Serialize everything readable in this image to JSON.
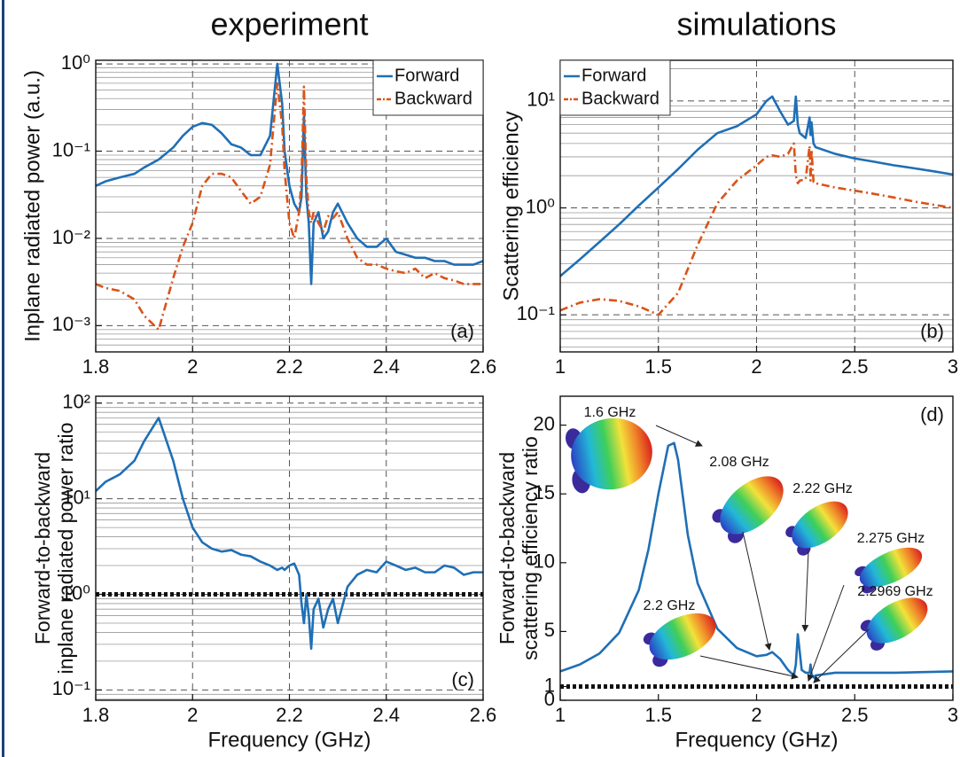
{
  "chart_data": [
    {
      "type": "line",
      "title": "experiment",
      "ylabel": "Inplane radiated power (a.u.)",
      "panel_label": "(a)",
      "xlim": [
        1.8,
        2.6
      ],
      "xticks": [
        1.8,
        2,
        2.2,
        2.4,
        2.6
      ],
      "ylog": true,
      "ylim": [
        0.0005,
        1.1
      ],
      "yticks": [
        {
          "value": 0.001,
          "label": "10⁻³"
        },
        {
          "value": 0.01,
          "label": "10⁻²"
        },
        {
          "value": 0.1,
          "label": "10⁻¹"
        },
        {
          "value": 1,
          "label": "10⁰"
        }
      ],
      "grid": true,
      "minor_grid": true,
      "legend": "upper right",
      "x": [
        1.8,
        1.82,
        1.85,
        1.88,
        1.9,
        1.93,
        1.96,
        1.98,
        2,
        2.02,
        2.04,
        2.06,
        2.08,
        2.1,
        2.12,
        2.14,
        2.16,
        2.175,
        2.185,
        2.19,
        2.2,
        2.21,
        2.22,
        2.225,
        2.23,
        2.235,
        2.24,
        2.245,
        2.25,
        2.26,
        2.27,
        2.28,
        2.29,
        2.3,
        2.32,
        2.34,
        2.36,
        2.38,
        2.4,
        2.42,
        2.44,
        2.46,
        2.48,
        2.5,
        2.52,
        2.54,
        2.56,
        2.58,
        2.6
      ],
      "series": [
        {
          "name": "Forward",
          "color": "#1f6fb5",
          "style": "solid",
          "values": [
            0.04,
            0.045,
            0.05,
            0.055,
            0.065,
            0.08,
            0.11,
            0.15,
            0.19,
            0.21,
            0.2,
            0.16,
            0.12,
            0.11,
            0.09,
            0.09,
            0.15,
            1.0,
            0.35,
            0.1,
            0.04,
            0.025,
            0.02,
            0.03,
            0.25,
            0.03,
            0.015,
            0.003,
            0.015,
            0.02,
            0.01,
            0.012,
            0.02,
            0.025,
            0.015,
            0.01,
            0.008,
            0.008,
            0.01,
            0.007,
            0.0065,
            0.006,
            0.006,
            0.0055,
            0.0055,
            0.005,
            0.005,
            0.005,
            0.0055
          ]
        },
        {
          "name": "Backward",
          "color": "#d95319",
          "style": "dashdot",
          "values": [
            0.003,
            0.0027,
            0.0025,
            0.002,
            0.0013,
            0.0009,
            0.0035,
            0.008,
            0.015,
            0.04,
            0.055,
            0.055,
            0.05,
            0.035,
            0.025,
            0.03,
            0.07,
            0.6,
            0.2,
            0.06,
            0.015,
            0.01,
            0.02,
            0.05,
            0.55,
            0.05,
            0.02,
            0.015,
            0.02,
            0.015,
            0.012,
            0.018,
            0.017,
            0.02,
            0.01,
            0.006,
            0.005,
            0.005,
            0.0045,
            0.0042,
            0.004,
            0.0045,
            0.0035,
            0.004,
            0.0035,
            0.0033,
            0.003,
            0.003,
            0.003
          ]
        }
      ]
    },
    {
      "type": "line",
      "title": "simulations",
      "ylabel": "Scattering efficiency",
      "panel_label": "(b)",
      "xlim": [
        1,
        3
      ],
      "xticks": [
        1,
        1.5,
        2,
        2.5,
        3
      ],
      "ylog": true,
      "ylim": [
        0.045,
        24
      ],
      "yticks": [
        {
          "value": 0.1,
          "label": "10⁻¹"
        },
        {
          "value": 1,
          "label": "10⁰"
        },
        {
          "value": 10,
          "label": "10¹"
        }
      ],
      "grid": true,
      "minor_grid": true,
      "legend": "upper left",
      "x": [
        1,
        1.1,
        1.2,
        1.3,
        1.4,
        1.5,
        1.6,
        1.7,
        1.8,
        1.9,
        2,
        2.05,
        2.08,
        2.12,
        2.16,
        2.19,
        2.2,
        2.21,
        2.22,
        2.25,
        2.27,
        2.275,
        2.28,
        2.29,
        2.2969,
        2.3,
        2.4,
        2.5,
        2.6,
        2.7,
        2.8,
        2.9,
        3
      ],
      "series": [
        {
          "name": "Forward",
          "color": "#1f6fb5",
          "style": "solid",
          "values": [
            0.23,
            0.33,
            0.48,
            0.7,
            1.05,
            1.55,
            2.3,
            3.5,
            5,
            5.8,
            7.5,
            10,
            11,
            8,
            6,
            6.5,
            11,
            6,
            5,
            4.5,
            7,
            4.8,
            6.3,
            4,
            3.8,
            3.7,
            3.2,
            2.9,
            2.7,
            2.5,
            2.35,
            2.2,
            2.05
          ]
        },
        {
          "name": "Backward",
          "color": "#d95319",
          "style": "dashdot",
          "values": [
            0.11,
            0.13,
            0.14,
            0.135,
            0.12,
            0.1,
            0.16,
            0.45,
            1.1,
            1.8,
            2.5,
            3,
            3.1,
            3,
            3.2,
            4,
            2.0,
            1.7,
            1.8,
            1.85,
            3.8,
            1.8,
            3.5,
            1.75,
            1.75,
            1.7,
            1.55,
            1.45,
            1.35,
            1.25,
            1.15,
            1.07,
            1.0
          ]
        }
      ]
    },
    {
      "type": "line",
      "ylabel": [
        "Forward-to-backward",
        "inplane radiated power ratio"
      ],
      "xlabel": "Frequency (GHz)",
      "panel_label": "(c)",
      "xlim": [
        1.8,
        2.6
      ],
      "xticks": [
        1.8,
        2,
        2.2,
        2.4,
        2.6
      ],
      "ylog": true,
      "ylim": [
        0.078,
        118
      ],
      "yticks": [
        {
          "value": 0.1,
          "label": "10⁻¹"
        },
        {
          "value": 1,
          "label": "10⁰"
        },
        {
          "value": 10,
          "label": "10¹"
        },
        {
          "value": 100,
          "label": "10²"
        }
      ],
      "grid": true,
      "minor_grid": true,
      "hline": 1,
      "x": [
        1.8,
        1.82,
        1.85,
        1.88,
        1.9,
        1.93,
        1.96,
        1.98,
        2,
        2.02,
        2.04,
        2.06,
        2.08,
        2.1,
        2.12,
        2.14,
        2.16,
        2.175,
        2.185,
        2.19,
        2.2,
        2.21,
        2.22,
        2.225,
        2.23,
        2.235,
        2.24,
        2.245,
        2.25,
        2.26,
        2.27,
        2.28,
        2.29,
        2.3,
        2.32,
        2.34,
        2.36,
        2.38,
        2.4,
        2.42,
        2.44,
        2.46,
        2.48,
        2.5,
        2.52,
        2.54,
        2.56,
        2.58,
        2.6
      ],
      "series": [
        {
          "color": "#1f6fb5",
          "style": "solid",
          "values": [
            12,
            15,
            18,
            25,
            40,
            70,
            25,
            10,
            5,
            3.5,
            3,
            2.8,
            2.9,
            2.6,
            2.5,
            2.2,
            2,
            1.8,
            1.9,
            1.8,
            2.0,
            2.1,
            1.6,
            0.8,
            0.5,
            1.0,
            0.6,
            0.27,
            0.7,
            0.9,
            0.45,
            0.7,
            0.9,
            0.5,
            1.2,
            1.6,
            1.8,
            1.7,
            2.2,
            2.0,
            1.8,
            1.9,
            1.7,
            1.7,
            2.0,
            1.9,
            1.6,
            1.7,
            1.7
          ]
        }
      ]
    },
    {
      "type": "line",
      "ylabel": [
        "Forward-to-backward",
        "scattering efficiency ratio"
      ],
      "xlabel": "Frequency (GHz)",
      "panel_label": "(d)",
      "xlim": [
        1,
        3
      ],
      "xticks": [
        1,
        1.5,
        2,
        2.5,
        3
      ],
      "ylog": false,
      "ylim": [
        0,
        22.1
      ],
      "yticks": [
        0,
        1,
        5,
        10,
        15,
        20
      ],
      "grid": false,
      "hline": 1,
      "annotations": [
        "1.6 GHz",
        "2.08 GHz",
        "2.22 GHz",
        "2.275 GHz",
        "2.2969 GHz",
        "2.2 GHz"
      ],
      "x": [
        1,
        1.1,
        1.2,
        1.3,
        1.4,
        1.45,
        1.5,
        1.55,
        1.58,
        1.6,
        1.65,
        1.7,
        1.8,
        1.9,
        2,
        2.05,
        2.08,
        2.12,
        2.16,
        2.19,
        2.2,
        2.21,
        2.22,
        2.23,
        2.25,
        2.27,
        2.275,
        2.28,
        2.29,
        2.2969,
        2.3,
        2.4,
        2.5,
        2.7,
        3
      ],
      "series": [
        {
          "color": "#1f6fb5",
          "style": "solid",
          "values": [
            2.1,
            2.6,
            3.4,
            4.9,
            8,
            11,
            15,
            18.5,
            18.7,
            17.5,
            12,
            8.5,
            5.2,
            3.8,
            3.2,
            3.3,
            3.5,
            3.0,
            2.2,
            1.8,
            2.6,
            4.8,
            3.5,
            2.2,
            2.0,
            2.0,
            2.6,
            1.9,
            1.7,
            1.6,
            1.8,
            2.0,
            2.0,
            2.0,
            2.1
          ]
        }
      ]
    }
  ]
}
